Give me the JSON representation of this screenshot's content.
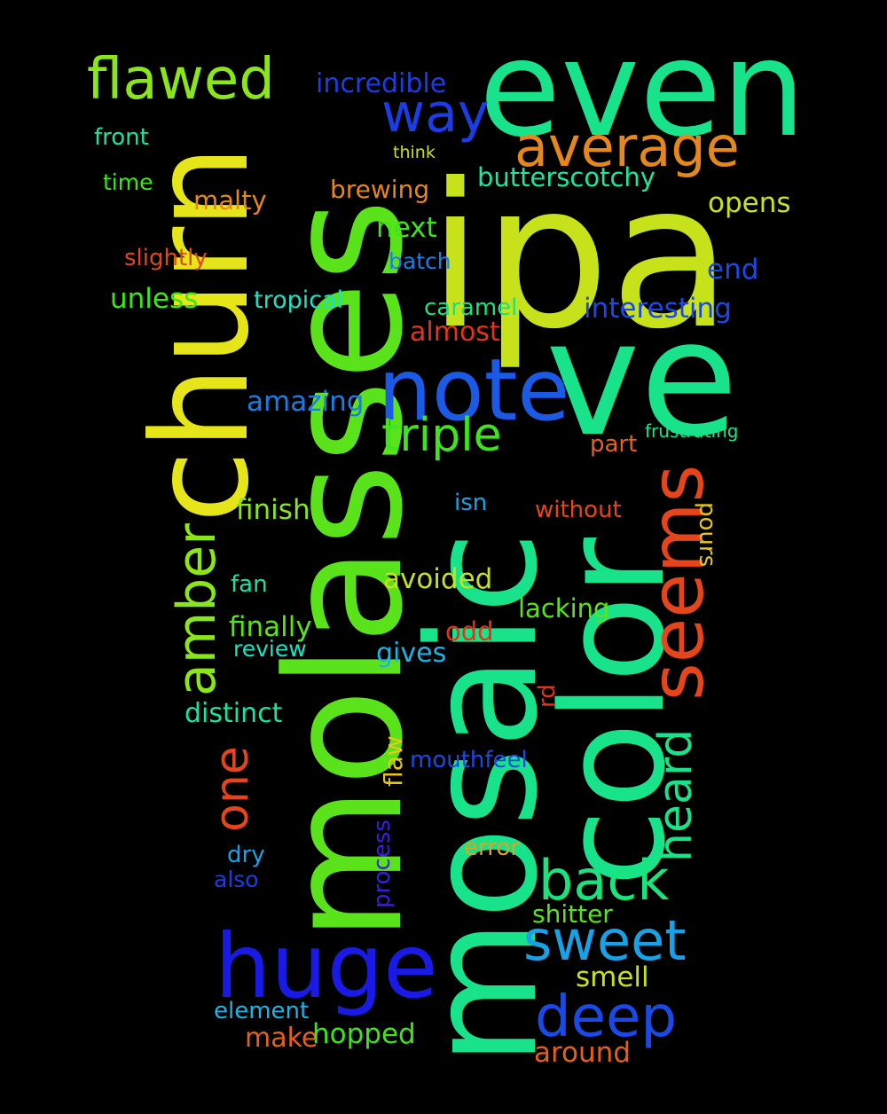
{
  "words": {
    "ipa": {
      "text": "ipa",
      "color": "#c7e11a"
    },
    "even": {
      "text": "even",
      "color": "#19e38a"
    },
    "molasses": {
      "text": "molasses",
      "color": "#5ae31a"
    },
    "churn": {
      "text": "churn",
      "color": "#e5e51a"
    },
    "ve": {
      "text": "ve",
      "color": "#19e38a"
    },
    "mosaic": {
      "text": "mosaic",
      "color": "#19e38a"
    },
    "color": {
      "text": "color",
      "color": "#19e38a"
    },
    "note": {
      "text": "note",
      "color": "#1a5ae5"
    },
    "huge": {
      "text": "huge",
      "color": "#1a1ae5"
    },
    "seems": {
      "text": "seems",
      "color": "#e5451a"
    },
    "flawed": {
      "text": "flawed",
      "color": "#8ae51a"
    },
    "average": {
      "text": "average",
      "color": "#e5871a"
    },
    "way": {
      "text": "way",
      "color": "#1a3de5"
    },
    "triple": {
      "text": "triple",
      "color": "#3de51a"
    },
    "back": {
      "text": "back",
      "color": "#19e37c"
    },
    "amber": {
      "text": "amber",
      "color": "#8ae51a"
    },
    "sweet": {
      "text": "sweet",
      "color": "#1aa1e5"
    },
    "deep": {
      "text": "deep",
      "color": "#1a4ae5"
    },
    "heard": {
      "text": "heard",
      "color": "#19e38a"
    },
    "one": {
      "text": "one",
      "color": "#e5451a"
    },
    "incredible": {
      "text": "incredible",
      "color": "#1a3de5"
    },
    "butterscotchy": {
      "text": "butterscotchy",
      "color": "#1ae5a1"
    },
    "front": {
      "text": "front",
      "color": "#19e3a0"
    },
    "think": {
      "text": "think",
      "color": "#c7e11a"
    },
    "time": {
      "text": "time",
      "color": "#3de51a"
    },
    "malty": {
      "text": "malty",
      "color": "#e5871a"
    },
    "brewing": {
      "text": "brewing",
      "color": "#e5871a"
    },
    "opens": {
      "text": "opens",
      "color": "#c7e11a"
    },
    "next": {
      "text": "next",
      "color": "#3de51a"
    },
    "slightly": {
      "text": "slightly",
      "color": "#e5451a"
    },
    "batch": {
      "text": "batch",
      "color": "#1a7ce5"
    },
    "end": {
      "text": "end",
      "color": "#1a4ae5"
    },
    "unless": {
      "text": "unless",
      "color": "#3de51a"
    },
    "tropical": {
      "text": "tropical",
      "color": "#19e3c3"
    },
    "caramel": {
      "text": "caramel",
      "color": "#19e37c"
    },
    "interesting": {
      "text": "interesting",
      "color": "#1a4ae5"
    },
    "almost": {
      "text": "almost",
      "color": "#e5321a"
    },
    "amazing": {
      "text": "amazing",
      "color": "#1a7ce5"
    },
    "frustrating": {
      "text": "frustrating",
      "color": "#19e38a"
    },
    "part": {
      "text": "part",
      "color": "#e5601a"
    },
    "finish": {
      "text": "finish",
      "color": "#8ae51a"
    },
    "isn": {
      "text": "isn",
      "color": "#1aa1e5"
    },
    "without": {
      "text": "without",
      "color": "#e5451a"
    },
    "pours": {
      "text": "pours",
      "color": "#e5c71a"
    },
    "avoided": {
      "text": "avoided",
      "color": "#c7e11a"
    },
    "fan": {
      "text": "fan",
      "color": "#19e3a0"
    },
    "lacking": {
      "text": "lacking",
      "color": "#5ae31a"
    },
    "finally": {
      "text": "finally",
      "color": "#5ae31a"
    },
    "odd": {
      "text": "odd",
      "color": "#e5321a"
    },
    "review": {
      "text": "review",
      "color": "#19e3c3"
    },
    "gives": {
      "text": "gives",
      "color": "#1ab5e5"
    },
    "rd": {
      "text": "rd",
      "color": "#e5321a"
    },
    "distinct": {
      "text": "distinct",
      "color": "#19e3a0"
    },
    "flaw": {
      "text": "flaw",
      "color": "#e5c71a"
    },
    "mouthfeel": {
      "text": "mouthfeel",
      "color": "#1a4ae5"
    },
    "process": {
      "text": "process",
      "color": "#3d1ae5"
    },
    "dry": {
      "text": "dry",
      "color": "#1aa1e5"
    },
    "error": {
      "text": "error",
      "color": "#e5a11a"
    },
    "also": {
      "text": "also",
      "color": "#1a3de5"
    },
    "shitter": {
      "text": "shitter",
      "color": "#5ae31a"
    },
    "smell": {
      "text": "smell",
      "color": "#c7e11a"
    },
    "element": {
      "text": "element",
      "color": "#1ab5e5"
    },
    "make": {
      "text": "make",
      "color": "#e5601a"
    },
    "hopped": {
      "text": "hopped",
      "color": "#3de51a"
    },
    "around": {
      "text": "around",
      "color": "#e5601a"
    }
  }
}
